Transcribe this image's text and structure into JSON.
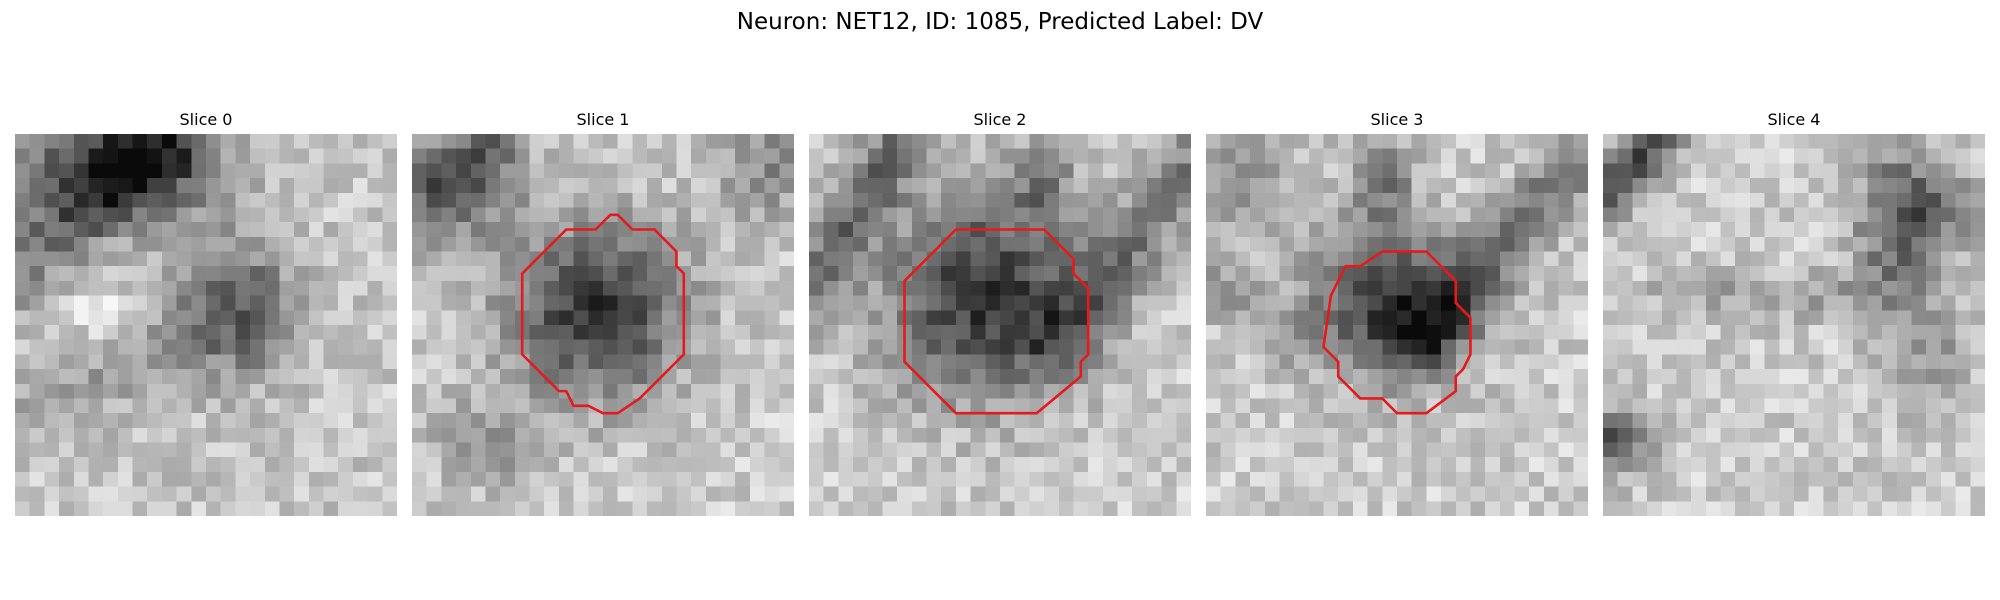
{
  "figure": {
    "title": "Neuron: NET12, ID: 1085, Predicted Label: DV"
  },
  "panels": [
    {
      "title": "Slice 0",
      "has_outline": false
    },
    {
      "title": "Slice 1",
      "has_outline": true
    },
    {
      "title": "Slice 2",
      "has_outline": true
    },
    {
      "title": "Slice 3",
      "has_outline": true
    },
    {
      "title": "Slice 4",
      "has_outline": false
    }
  ],
  "colors": {
    "outline": "#e41a1c",
    "colormap": "grayscale"
  }
}
